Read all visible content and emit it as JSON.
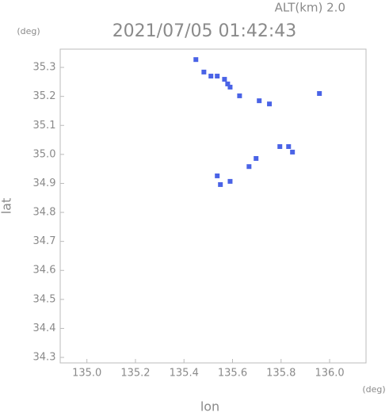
{
  "chart_data": {
    "type": "scatter",
    "title": "2021/07/05 01:42:43",
    "subtitle": "ALT(km) 2.0",
    "y_unit": "(deg)",
    "x_unit": "(deg)",
    "x_label": "lon",
    "y_label": "lat",
    "xlim": [
      134.89,
      136.15
    ],
    "ylim": [
      34.281,
      35.363
    ],
    "xticks": [
      {
        "value": 135.0,
        "label": "135.0"
      },
      135.2,
      135.4,
      135.6,
      135.8,
      {
        "value": 136.0,
        "label": "136.0"
      }
    ],
    "yticks": [
      34.3,
      34.4,
      34.5,
      34.6,
      34.7,
      34.8,
      34.9,
      {
        "value": 35.0,
        "label": "35.0"
      },
      35.1,
      35.2,
      35.3
    ],
    "series": [
      {
        "color": "#4a63e6",
        "x": [
          135.449,
          135.482,
          135.511,
          135.537,
          135.567,
          135.58,
          135.59,
          135.629,
          135.71,
          135.752,
          135.958,
          135.795,
          135.831,
          135.847,
          135.697,
          135.668,
          135.537,
          135.55,
          135.59
        ],
        "values": [
          35.327,
          35.284,
          35.27,
          35.27,
          35.259,
          35.243,
          35.232,
          35.202,
          35.185,
          35.174,
          35.21,
          35.027,
          35.027,
          35.008,
          34.986,
          34.958,
          34.926,
          34.896,
          34.907
        ]
      }
    ]
  }
}
